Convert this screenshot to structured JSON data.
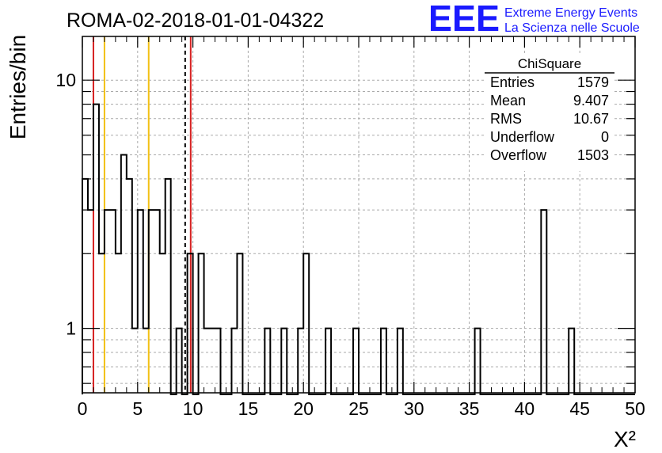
{
  "logo": {
    "mark": "EEE",
    "line1": "Extreme Energy Events",
    "line2": "La Scienza nelle Scuole"
  },
  "chart_data": {
    "type": "histogram",
    "title": "ROMA-02-2018-01-01-04322",
    "xlabel": "X²",
    "ylabel": "Entries/bin",
    "xlim": [
      0,
      50
    ],
    "ylim": [
      0.55,
      15
    ],
    "y_scale": "log",
    "grid": true,
    "bin_width": 0.5,
    "x_ticks": [
      "0",
      "5",
      "10",
      "15",
      "20",
      "25",
      "30",
      "35",
      "40",
      "45",
      "50"
    ],
    "x_tick_values": [
      0,
      5,
      10,
      15,
      20,
      25,
      30,
      35,
      40,
      45,
      50
    ],
    "y_ticks": [
      "1",
      "10"
    ],
    "y_tick_values": [
      1,
      10
    ],
    "bins": [
      {
        "x0": 0.0,
        "count": 4
      },
      {
        "x0": 0.5,
        "count": 3
      },
      {
        "x0": 1.0,
        "count": 8
      },
      {
        "x0": 1.5,
        "count": 2
      },
      {
        "x0": 2.0,
        "count": 3
      },
      {
        "x0": 2.5,
        "count": 3
      },
      {
        "x0": 3.0,
        "count": 2
      },
      {
        "x0": 3.5,
        "count": 5
      },
      {
        "x0": 4.0,
        "count": 4
      },
      {
        "x0": 4.5,
        "count": 1
      },
      {
        "x0": 5.0,
        "count": 3
      },
      {
        "x0": 5.5,
        "count": 1
      },
      {
        "x0": 6.0,
        "count": 3
      },
      {
        "x0": 6.5,
        "count": 3
      },
      {
        "x0": 7.0,
        "count": 2
      },
      {
        "x0": 7.5,
        "count": 4
      },
      {
        "x0": 8.5,
        "count": 1
      },
      {
        "x0": 9.5,
        "count": 2
      },
      {
        "x0": 10.5,
        "count": 2
      },
      {
        "x0": 11.0,
        "count": 1
      },
      {
        "x0": 11.5,
        "count": 1
      },
      {
        "x0": 12.0,
        "count": 1
      },
      {
        "x0": 13.5,
        "count": 1
      },
      {
        "x0": 14.0,
        "count": 2
      },
      {
        "x0": 16.5,
        "count": 1
      },
      {
        "x0": 18.0,
        "count": 1
      },
      {
        "x0": 19.5,
        "count": 1
      },
      {
        "x0": 20.0,
        "count": 2
      },
      {
        "x0": 22.0,
        "count": 1
      },
      {
        "x0": 24.5,
        "count": 1
      },
      {
        "x0": 27.0,
        "count": 1
      },
      {
        "x0": 28.5,
        "count": 1
      },
      {
        "x0": 35.5,
        "count": 1
      },
      {
        "x0": 41.5,
        "count": 3
      },
      {
        "x0": 44.0,
        "count": 1
      }
    ],
    "vertical_lines": [
      {
        "x": 1.0,
        "color": "#d62020",
        "style": "solid"
      },
      {
        "x": 9.8,
        "color": "#d62020",
        "style": "solid"
      },
      {
        "x": 2.0,
        "color": "#f2c014",
        "style": "solid"
      },
      {
        "x": 6.0,
        "color": "#f2c014",
        "style": "solid"
      },
      {
        "x": 9.3,
        "color": "#000000",
        "style": "dashed"
      }
    ],
    "stats_box": {
      "title": "ChiSquare",
      "rows": [
        {
          "label": "Entries",
          "value": "1579"
        },
        {
          "label": "Mean",
          "value": "9.407"
        },
        {
          "label": "RMS",
          "value": "10.67"
        },
        {
          "label": "Underflow",
          "value": "0"
        },
        {
          "label": "Overflow",
          "value": "1503"
        }
      ]
    }
  }
}
